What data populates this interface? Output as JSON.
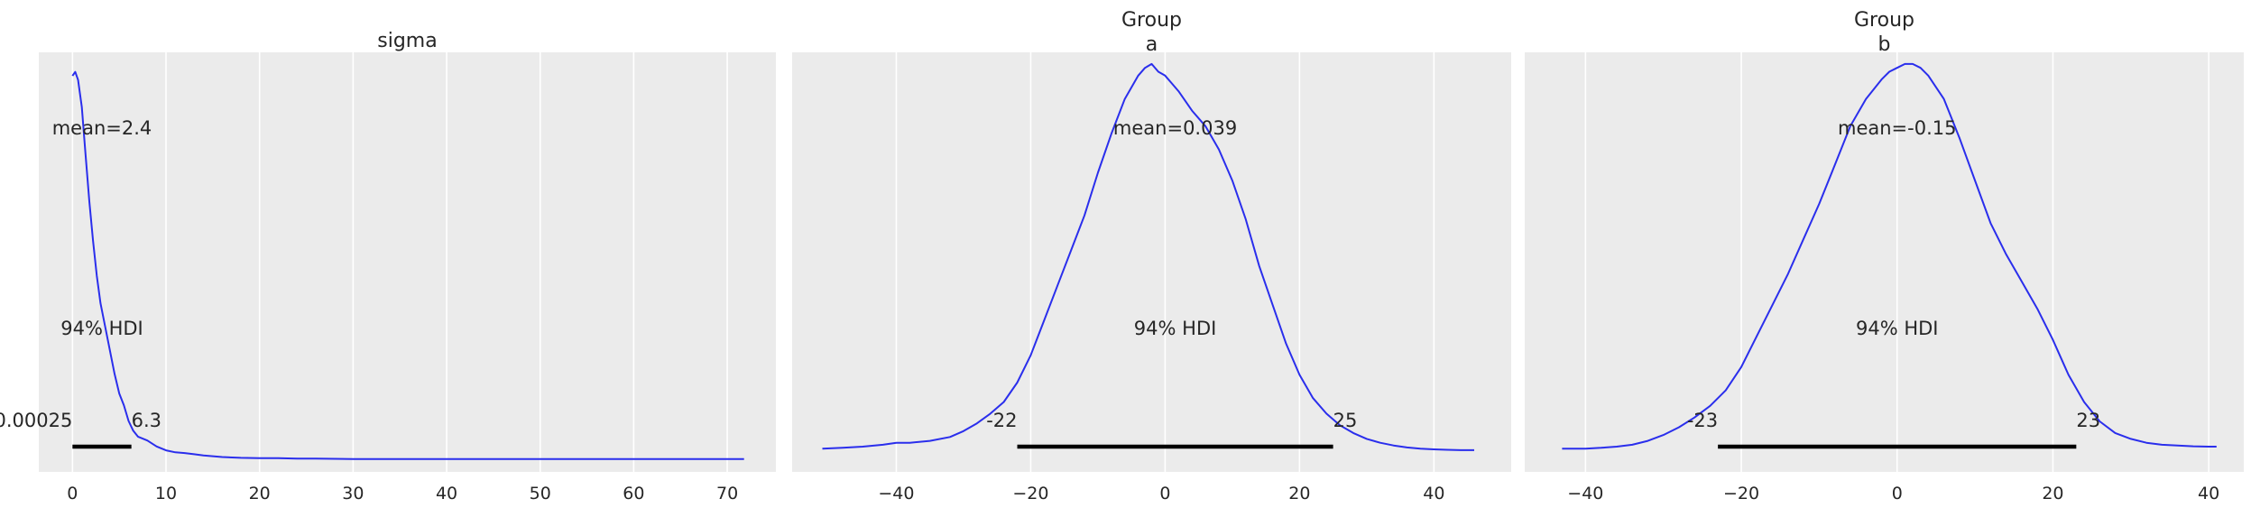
{
  "figure": {
    "background": "#ffffff",
    "plot_background": "#ebebeb",
    "grid_color": "#ffffff",
    "line_color": "#2a2eec",
    "hdi_color": "#000000"
  },
  "chart_data": [
    {
      "type": "line",
      "title_lines": [
        "sigma"
      ],
      "xlim": [
        -3.6,
        75.2
      ],
      "ylim": [
        -0.03,
        1.04
      ],
      "grid": true,
      "x_ticks": [
        0,
        10,
        20,
        30,
        40,
        50,
        60,
        70
      ],
      "x_tick_labels": [
        "0",
        "10",
        "20",
        "30",
        "40",
        "50",
        "60",
        "70"
      ],
      "mean_label": "mean=2.4",
      "hdi_label": "94% HDI",
      "hdi_low": 0.00025,
      "hdi_high": 6.3,
      "hdi_low_label": "0.00025",
      "hdi_high_label": "6.3",
      "series": [
        {
          "x": [
            0,
            0.3,
            0.6,
            1.0,
            1.4,
            1.8,
            2.2,
            2.6,
            3.0,
            3.5,
            4.0,
            4.5,
            5.0,
            5.5,
            6.0,
            6.5,
            7.0,
            8.0,
            9.0,
            10.0,
            11.0,
            12.0,
            13.0,
            14.0,
            15.0,
            16.0,
            18.0,
            20.0,
            22.0,
            24.0,
            26.0,
            30.0,
            35.0,
            40.0,
            45.0,
            50.0,
            55.0,
            60.0,
            65.0,
            70.0,
            71.8
          ],
          "y": [
            0.98,
            0.99,
            0.97,
            0.9,
            0.78,
            0.66,
            0.56,
            0.47,
            0.4,
            0.34,
            0.28,
            0.22,
            0.17,
            0.14,
            0.1,
            0.075,
            0.06,
            0.05,
            0.035,
            0.025,
            0.02,
            0.018,
            0.015,
            0.012,
            0.01,
            0.008,
            0.006,
            0.005,
            0.005,
            0.004,
            0.004,
            0.003,
            0.003,
            0.003,
            0.003,
            0.003,
            0.003,
            0.003,
            0.003,
            0.003,
            0.003
          ]
        }
      ]
    },
    {
      "type": "line",
      "title_lines": [
        "Group",
        "a"
      ],
      "xlim": [
        -55.5,
        51.5
      ],
      "ylim": [
        -0.05,
        1.03
      ],
      "grid": true,
      "x_ticks": [
        -40,
        -20,
        0,
        20,
        40
      ],
      "x_tick_labels": [
        "−40",
        "−20",
        "0",
        "20",
        "40"
      ],
      "mean_label": "mean=0.039",
      "hdi_label": "94% HDI",
      "hdi_low": -22,
      "hdi_high": 25,
      "hdi_low_label": "-22",
      "hdi_high_label": "25",
      "series": [
        {
          "x": [
            -51,
            -48,
            -45,
            -42,
            -40,
            -38,
            -35,
            -32,
            -30,
            -28,
            -26,
            -24,
            -22,
            -20,
            -18,
            -16,
            -14,
            -12,
            -10,
            -8,
            -6,
            -4,
            -3,
            -2,
            -1,
            0,
            1,
            2,
            4,
            6,
            8,
            10,
            12,
            14,
            16,
            18,
            20,
            22,
            24,
            26,
            28,
            30,
            32,
            34,
            36,
            38,
            40,
            42,
            44,
            46
          ],
          "y": [
            0.01,
            0.012,
            0.015,
            0.02,
            0.025,
            0.025,
            0.03,
            0.04,
            0.055,
            0.075,
            0.1,
            0.13,
            0.18,
            0.25,
            0.34,
            0.43,
            0.52,
            0.61,
            0.72,
            0.82,
            0.91,
            0.97,
            0.99,
            1.0,
            0.98,
            0.97,
            0.95,
            0.93,
            0.88,
            0.84,
            0.78,
            0.7,
            0.6,
            0.48,
            0.38,
            0.28,
            0.2,
            0.14,
            0.1,
            0.07,
            0.05,
            0.035,
            0.025,
            0.018,
            0.013,
            0.01,
            0.008,
            0.007,
            0.006,
            0.006
          ]
        }
      ]
    },
    {
      "type": "line",
      "title_lines": [
        "Group",
        "b"
      ],
      "xlim": [
        -47.8,
        44.5
      ],
      "ylim": [
        -0.05,
        1.03
      ],
      "grid": true,
      "x_ticks": [
        -40,
        -20,
        0,
        20,
        40
      ],
      "x_tick_labels": [
        "−40",
        "−20",
        "0",
        "20",
        "40"
      ],
      "mean_label": "mean=-0.15",
      "hdi_label": "94% HDI",
      "hdi_low": -23,
      "hdi_high": 23,
      "hdi_low_label": "-23",
      "hdi_high_label": "23",
      "series": [
        {
          "x": [
            -43,
            -40,
            -38,
            -36,
            -34,
            -32,
            -30,
            -28,
            -26,
            -24,
            -22,
            -20,
            -18,
            -16,
            -14,
            -12,
            -10,
            -8,
            -6,
            -4,
            -2,
            -1,
            0,
            1,
            2,
            3,
            4,
            6,
            8,
            10,
            12,
            14,
            16,
            18,
            20,
            22,
            24,
            26,
            28,
            30,
            32,
            34,
            36,
            38,
            40,
            41
          ],
          "y": [
            0.01,
            0.01,
            0.012,
            0.015,
            0.02,
            0.03,
            0.045,
            0.065,
            0.09,
            0.12,
            0.16,
            0.22,
            0.3,
            0.38,
            0.46,
            0.55,
            0.64,
            0.74,
            0.84,
            0.91,
            0.96,
            0.98,
            0.99,
            1.0,
            1.0,
            0.99,
            0.97,
            0.91,
            0.81,
            0.7,
            0.59,
            0.51,
            0.44,
            0.37,
            0.29,
            0.2,
            0.13,
            0.08,
            0.05,
            0.035,
            0.025,
            0.02,
            0.018,
            0.016,
            0.015,
            0.015
          ]
        }
      ]
    }
  ]
}
